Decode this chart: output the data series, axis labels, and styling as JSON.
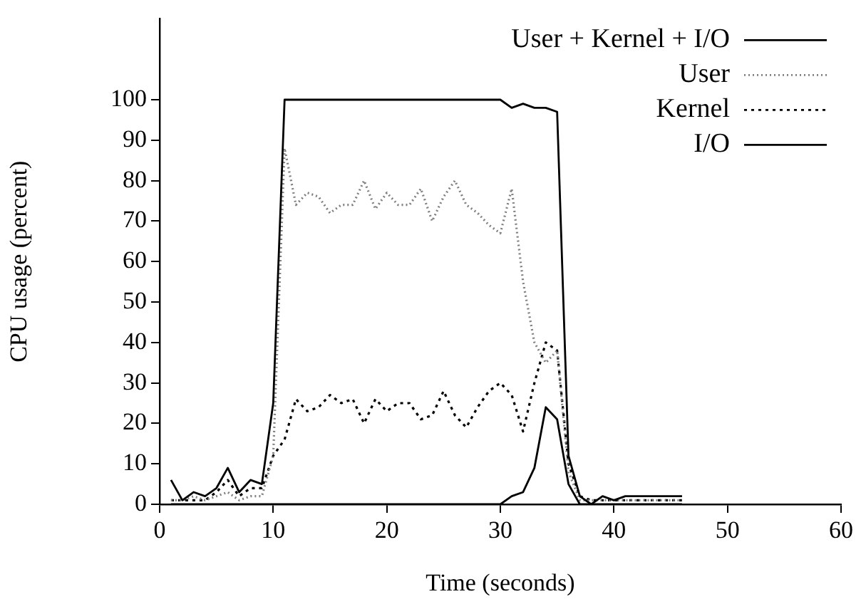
{
  "chart_data": {
    "type": "line",
    "xlabel": "Time (seconds)",
    "ylabel": "CPU usage (percent)",
    "x": [
      1,
      2,
      3,
      4,
      5,
      6,
      7,
      8,
      9,
      10,
      11,
      12,
      13,
      14,
      15,
      16,
      17,
      18,
      19,
      20,
      21,
      22,
      23,
      24,
      25,
      26,
      27,
      28,
      29,
      30,
      31,
      32,
      33,
      34,
      35,
      36,
      37,
      38,
      39,
      40,
      41,
      42,
      43,
      44,
      45,
      46
    ],
    "xlim": [
      0,
      60
    ],
    "xticks": [
      0,
      10,
      20,
      30,
      40,
      50,
      60
    ],
    "ylim": [
      0,
      120
    ],
    "yticks": [
      0,
      10,
      20,
      30,
      40,
      50,
      60,
      70,
      80,
      90,
      100
    ],
    "grid": false,
    "legend": "top right",
    "marker": "none",
    "series": [
      {
        "name": "User + Kernel + I/O",
        "color": "#000000",
        "line_style": "solid",
        "values": [
          6,
          1,
          3,
          2,
          4,
          9,
          3,
          6,
          5,
          25,
          100,
          100,
          100,
          100,
          100,
          100,
          100,
          100,
          100,
          100,
          100,
          100,
          100,
          100,
          100,
          100,
          100,
          100,
          100,
          100,
          98,
          99,
          98,
          98,
          97,
          12,
          2,
          0,
          2,
          1,
          2,
          2,
          2,
          2,
          2,
          2
        ]
      },
      {
        "name": "User",
        "color": "#808080",
        "line_style": "dotted",
        "values": [
          1,
          1,
          2,
          1,
          2,
          3,
          1,
          2,
          2,
          12,
          88,
          74,
          77,
          76,
          72,
          74,
          74,
          80,
          73,
          77,
          74,
          74,
          78,
          70,
          76,
          80,
          74,
          72,
          69,
          67,
          78,
          55,
          40,
          35,
          38,
          8,
          1,
          1,
          1,
          1,
          1,
          1,
          1,
          1,
          1,
          1
        ]
      },
      {
        "name": "Kernel",
        "color": "#000000",
        "line_style": "dashed",
        "values": [
          1,
          1,
          1,
          1,
          3,
          6,
          2,
          4,
          4,
          12,
          16,
          26,
          23,
          24,
          27,
          25,
          26,
          20,
          26,
          23,
          25,
          25,
          21,
          22,
          28,
          22,
          19,
          24,
          28,
          30,
          27,
          18,
          30,
          40,
          38,
          10,
          2,
          1,
          1,
          1,
          1,
          1,
          1,
          1,
          1,
          1
        ]
      },
      {
        "name": "I/O",
        "color": "#000000",
        "line_style": "solid",
        "values": [
          0,
          0,
          0,
          0,
          0,
          0,
          0,
          0,
          0,
          0,
          0,
          0,
          0,
          0,
          0,
          0,
          0,
          0,
          0,
          0,
          0,
          0,
          0,
          0,
          0,
          0,
          0,
          0,
          0,
          0,
          2,
          3,
          9,
          24,
          21,
          5,
          0,
          0,
          0,
          0,
          0,
          0,
          0,
          0,
          0,
          0
        ]
      }
    ]
  }
}
